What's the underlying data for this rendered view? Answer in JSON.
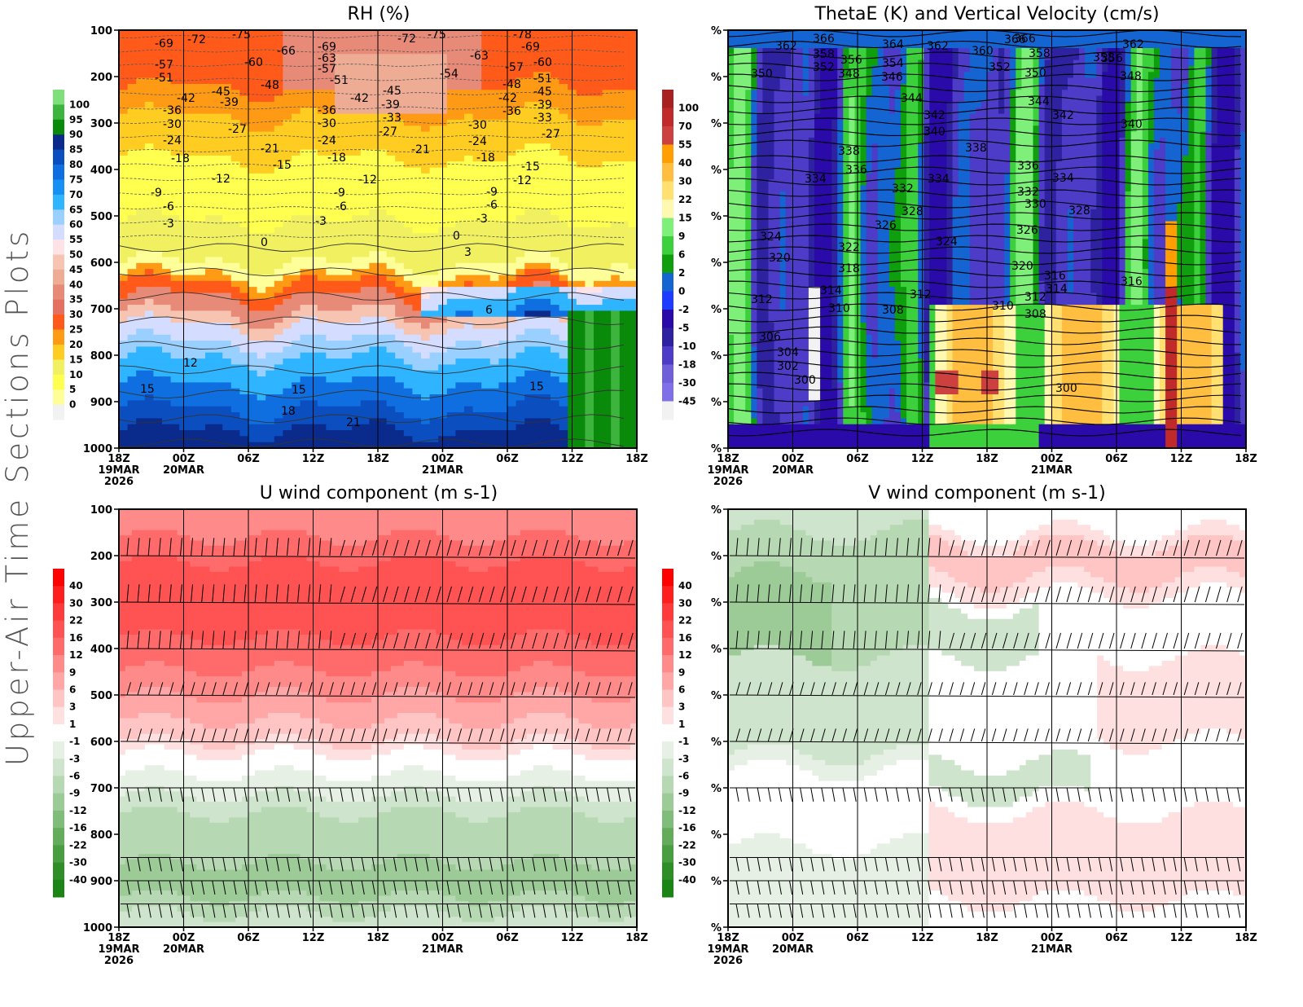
{
  "figure_title": "Upper-Air Time Sections Plots",
  "chart_data": [
    {
      "type": "heatmap",
      "id": "rh",
      "title": "RH (%)",
      "y_ticks": [
        "100",
        "200",
        "300",
        "400",
        "500",
        "600",
        "700",
        "800",
        "900",
        "1000"
      ],
      "ylim": [
        1000,
        100
      ],
      "x_ticks": [
        {
          "time": "18Z",
          "date": "19MAR",
          "year": "2026"
        },
        {
          "time": "00Z",
          "date": "20MAR"
        },
        {
          "time": "06Z"
        },
        {
          "time": "12Z"
        },
        {
          "time": "18Z"
        },
        {
          "time": "00Z",
          "date": "21MAR"
        },
        {
          "time": "06Z"
        },
        {
          "time": "12Z"
        },
        {
          "time": "18Z"
        }
      ],
      "colorbar": {
        "labels": [
          "100",
          "95",
          "90",
          "85",
          "80",
          "75",
          "70",
          "65",
          "60",
          "55",
          "50",
          "45",
          "40",
          "35",
          "30",
          "25",
          "20",
          "15",
          "10",
          "5",
          "0"
        ],
        "colors": [
          "#7ee07a",
          "#3db43d",
          "#0a8a0a",
          "#0a2a8c",
          "#0a4ec0",
          "#0f6fe0",
          "#1690f5",
          "#2fb4ff",
          "#9ad0ff",
          "#d4dcff",
          "#fde3e6",
          "#f6c4b0",
          "#eeac94",
          "#e88a78",
          "#e57060",
          "#ff5a1a",
          "#ff9a14",
          "#ffcc22",
          "#f0f060",
          "#ffff50",
          "#ffff9a",
          "#f2f2f2"
        ]
      },
      "contour_labels": [
        "-78",
        "-75",
        "-72",
        "-69",
        "-66",
        "-63",
        "-60",
        "-57",
        "-54",
        "-51",
        "-48",
        "-45",
        "-42",
        "-39",
        "-36",
        "-33",
        "-30",
        "-27",
        "-24",
        "-21",
        "-18",
        "-15",
        "-12",
        "-9",
        "-6",
        "-3",
        "0",
        "3",
        "6",
        "12",
        "15",
        "18",
        "21"
      ]
    },
    {
      "type": "heatmap",
      "id": "thetae",
      "title": "ThetaE (K) and Vertical Velocity (cm/s)",
      "y_ticks": [
        "%",
        "%",
        "%",
        "%",
        "%",
        "%",
        "%",
        "%",
        "%",
        "%"
      ],
      "x_ticks": [
        {
          "time": "18Z",
          "date": "19MAR",
          "year": "2026"
        },
        {
          "time": "00Z",
          "date": "20MAR"
        },
        {
          "time": "06Z"
        },
        {
          "time": "12Z"
        },
        {
          "time": "18Z"
        },
        {
          "time": "00Z",
          "date": "21MAR"
        },
        {
          "time": "06Z"
        },
        {
          "time": "12Z"
        },
        {
          "time": "18Z"
        }
      ],
      "colorbar": {
        "labels": [
          "100",
          "70",
          "55",
          "40",
          "30",
          "22",
          "15",
          "9",
          "6",
          "2",
          "0",
          "-2",
          "-5",
          "-10",
          "-18",
          "-30",
          "-45"
        ],
        "colors": [
          "#a82020",
          "#c02a2a",
          "#cc4040",
          "#ff9e00",
          "#ffbe40",
          "#ffe070",
          "#fff8b0",
          "#7ef07a",
          "#3cd03c",
          "#0e9e0e",
          "#1464d2",
          "#1e3cff",
          "#2a0aa8",
          "#2e22a0",
          "#4c3cc8",
          "#7060d8",
          "#8070e8",
          "#f2f2f2"
        ]
      },
      "contour_labels": [
        "366",
        "364",
        "362",
        "360",
        "358",
        "356",
        "354",
        "352",
        "350",
        "348",
        "346",
        "344",
        "342",
        "340",
        "338",
        "336",
        "334",
        "332",
        "330",
        "328",
        "326",
        "324",
        "322",
        "320",
        "318",
        "316",
        "314",
        "312",
        "310",
        "308",
        "306",
        "304",
        "302",
        "300"
      ]
    },
    {
      "type": "heatmap",
      "id": "uwind",
      "title": "U wind component (m s-1)",
      "y_ticks": [
        "100",
        "200",
        "300",
        "400",
        "500",
        "600",
        "700",
        "800",
        "900",
        "1000"
      ],
      "ylim": [
        1000,
        100
      ],
      "x_ticks": [
        {
          "time": "18Z",
          "date": "19MAR",
          "year": "2026"
        },
        {
          "time": "00Z",
          "date": "20MAR"
        },
        {
          "time": "06Z"
        },
        {
          "time": "12Z"
        },
        {
          "time": "18Z"
        },
        {
          "time": "00Z",
          "date": "21MAR"
        },
        {
          "time": "06Z"
        },
        {
          "time": "12Z"
        },
        {
          "time": "18Z"
        }
      ],
      "colorbar": {
        "labels": [
          "40",
          "30",
          "22",
          "16",
          "12",
          "9",
          "6",
          "3",
          "1",
          "-1",
          "-3",
          "-6",
          "-9",
          "-12",
          "-16",
          "-22",
          "-30",
          "-40"
        ],
        "colors": [
          "#ff0000",
          "#ff1e1e",
          "#ff3a3a",
          "#ff5252",
          "#ff6a6a",
          "#ff8a8a",
          "#ffa6a6",
          "#ffc4c4",
          "#ffe0e0",
          "#ffffff",
          "#e6f0e4",
          "#cfe4cc",
          "#b6d8b2",
          "#9ccb97",
          "#80bc7a",
          "#64ac5c",
          "#4a9e42",
          "#2f8e27",
          "#1a8414"
        ]
      },
      "wind_barb_levels": [
        200,
        300,
        400,
        500,
        600,
        700,
        850,
        900,
        950,
        1000
      ]
    },
    {
      "type": "heatmap",
      "id": "vwind",
      "title": "V wind component (m s-1)",
      "y_ticks": [
        "%",
        "%",
        "%",
        "%",
        "%",
        "%",
        "%",
        "%",
        "%",
        "%"
      ],
      "x_ticks": [
        {
          "time": "18Z",
          "date": "19MAR",
          "year": "2026"
        },
        {
          "time": "00Z",
          "date": "20MAR"
        },
        {
          "time": "06Z"
        },
        {
          "time": "12Z"
        },
        {
          "time": "18Z"
        },
        {
          "time": "00Z",
          "date": "21MAR"
        },
        {
          "time": "06Z"
        },
        {
          "time": "12Z"
        },
        {
          "time": "18Z"
        }
      ],
      "colorbar": {
        "labels": [
          "40",
          "30",
          "22",
          "16",
          "12",
          "9",
          "6",
          "3",
          "1",
          "-1",
          "-3",
          "-6",
          "-9",
          "-12",
          "-16",
          "-22",
          "-30",
          "-40"
        ],
        "colors": [
          "#ff0000",
          "#ff1e1e",
          "#ff3a3a",
          "#ff5252",
          "#ff6a6a",
          "#ff8a8a",
          "#ffa6a6",
          "#ffc4c4",
          "#ffe0e0",
          "#ffffff",
          "#e6f0e4",
          "#cfe4cc",
          "#b6d8b2",
          "#9ccb97",
          "#80bc7a",
          "#64ac5c",
          "#4a9e42",
          "#2f8e27",
          "#1a8414"
        ]
      },
      "wind_barb_levels": [
        200,
        300,
        400,
        500,
        600,
        700,
        850,
        900,
        950,
        1000
      ]
    }
  ]
}
